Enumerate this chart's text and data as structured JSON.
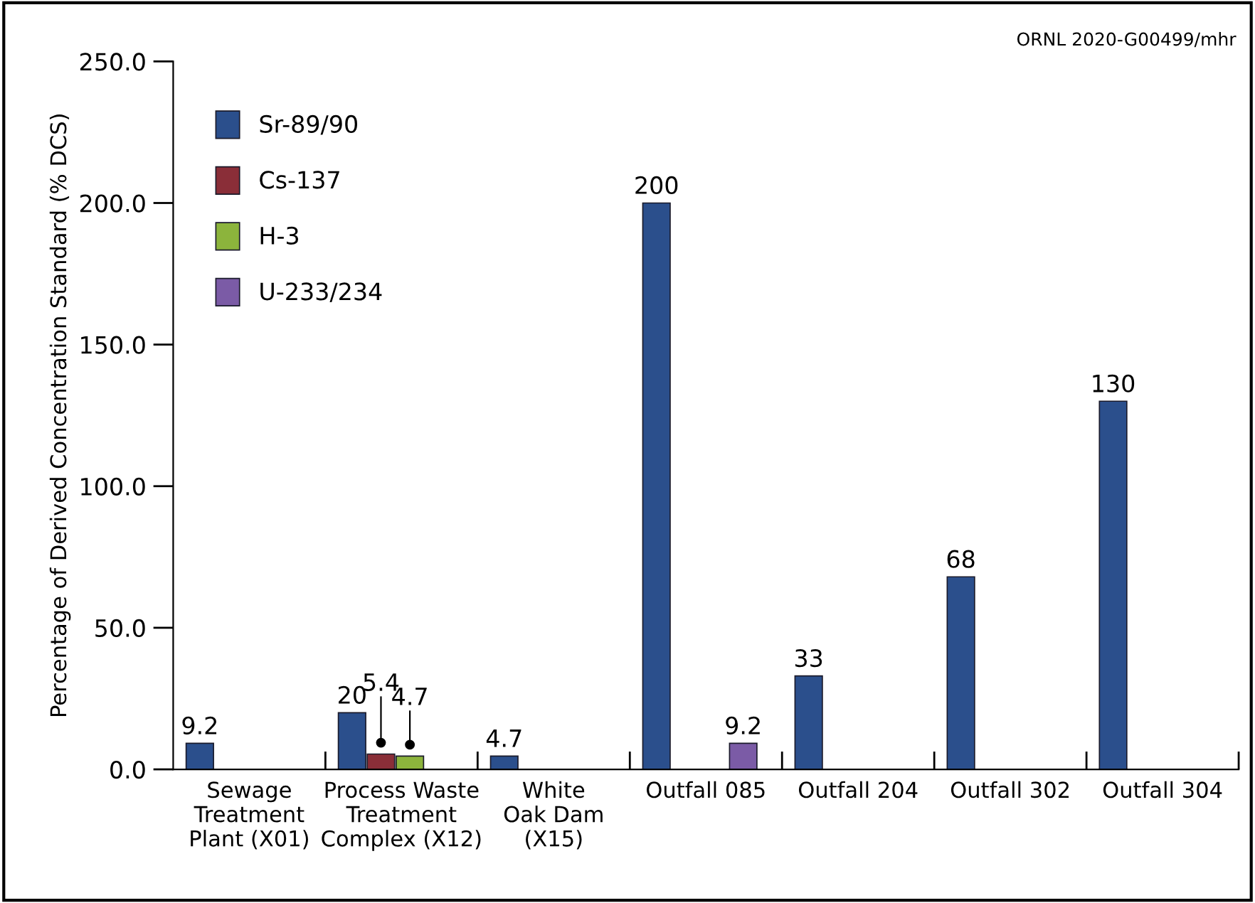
{
  "chart_data": {
    "type": "bar",
    "ylabel": "Percentage of Derived Concentration Standard (% DCS)",
    "categories": [
      "Sewage\nTreatment\nPlant (X01)",
      "Process Waste\nTreatment\nComplex (X12)",
      "White\nOak Dam\n(X15)",
      "Outfall 085",
      "Outfall 204",
      "Outfall 302",
      "Outfall 304"
    ],
    "series": [
      {
        "name": "Sr-89/90",
        "color": "#2b4f8c",
        "values": [
          9.2,
          20,
          4.7,
          200,
          33,
          68,
          130
        ]
      },
      {
        "name": "Cs-137",
        "color": "#8a2e38",
        "values": [
          null,
          5.4,
          null,
          null,
          null,
          null,
          null
        ]
      },
      {
        "name": "H-3",
        "color": "#8cb43c",
        "values": [
          null,
          4.7,
          null,
          null,
          null,
          null,
          null
        ]
      },
      {
        "name": "U-233/234",
        "color": "#7b5ba6",
        "values": [
          null,
          null,
          null,
          9.2,
          null,
          null,
          null
        ]
      }
    ],
    "ylim": [
      0,
      250
    ],
    "yticks": [
      {
        "value": 0,
        "label": "0.0"
      },
      {
        "value": 50,
        "label": "50.0"
      },
      {
        "value": 100,
        "label": "100.0"
      },
      {
        "value": 150,
        "label": "150.0"
      },
      {
        "value": 200,
        "label": "200.0"
      },
      {
        "value": 250,
        "label": "250.0"
      }
    ],
    "data_labels": true,
    "legend": "top left",
    "grid": false,
    "annotations": [
      "ORNL 2020-G00499/mhr"
    ]
  }
}
